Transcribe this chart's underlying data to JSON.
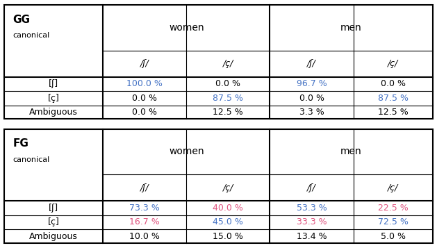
{
  "table1": {
    "title_label": "GG",
    "subtitle_label": "canonical",
    "col_groups": [
      "women",
      "men"
    ],
    "col_headers": [
      "/ʃ/",
      "/ç/",
      "/ʃ/",
      "/ç/"
    ],
    "row_labels": [
      "[ʃ]",
      "[ç]",
      "Ambiguous"
    ],
    "data": [
      [
        "100.0 %",
        "0.0 %",
        "96.7 %",
        "0.0 %"
      ],
      [
        "0.0 %",
        "87.5 %",
        "0.0 %",
        "87.5 %"
      ],
      [
        "0.0 %",
        "12.5 %",
        "3.3 %",
        "12.5 %"
      ]
    ],
    "colors": [
      [
        "#4472c4",
        "#000000",
        "#4472c4",
        "#000000"
      ],
      [
        "#000000",
        "#4472c4",
        "#000000",
        "#4472c4"
      ],
      [
        "#000000",
        "#000000",
        "#000000",
        "#000000"
      ]
    ]
  },
  "table2": {
    "title_label": "FG",
    "subtitle_label": "canonical",
    "col_groups": [
      "women",
      "men"
    ],
    "col_headers": [
      "/ʃ/",
      "/ç/",
      "/ʃ/",
      "/ç/"
    ],
    "row_labels": [
      "[ʃ]",
      "[ç]",
      "Ambiguous"
    ],
    "data": [
      [
        "73.3 %",
        "40.0 %",
        "53.3 %",
        "22.5 %"
      ],
      [
        "16.7 %",
        "45.0 %",
        "33.3 %",
        "72.5 %"
      ],
      [
        "10.0 %",
        "15.0 %",
        "13.4 %",
        "5.0 %"
      ]
    ],
    "colors": [
      [
        "#4472c4",
        "#e05580",
        "#4472c4",
        "#e05580"
      ],
      [
        "#e05580",
        "#4472c4",
        "#e05580",
        "#4472c4"
      ],
      [
        "#000000",
        "#000000",
        "#000000",
        "#000000"
      ]
    ]
  },
  "bg_color": "#ffffff",
  "border_color": "#000000",
  "font_size": 9,
  "figsize": [
    6.29,
    3.57
  ],
  "dpi": 100
}
